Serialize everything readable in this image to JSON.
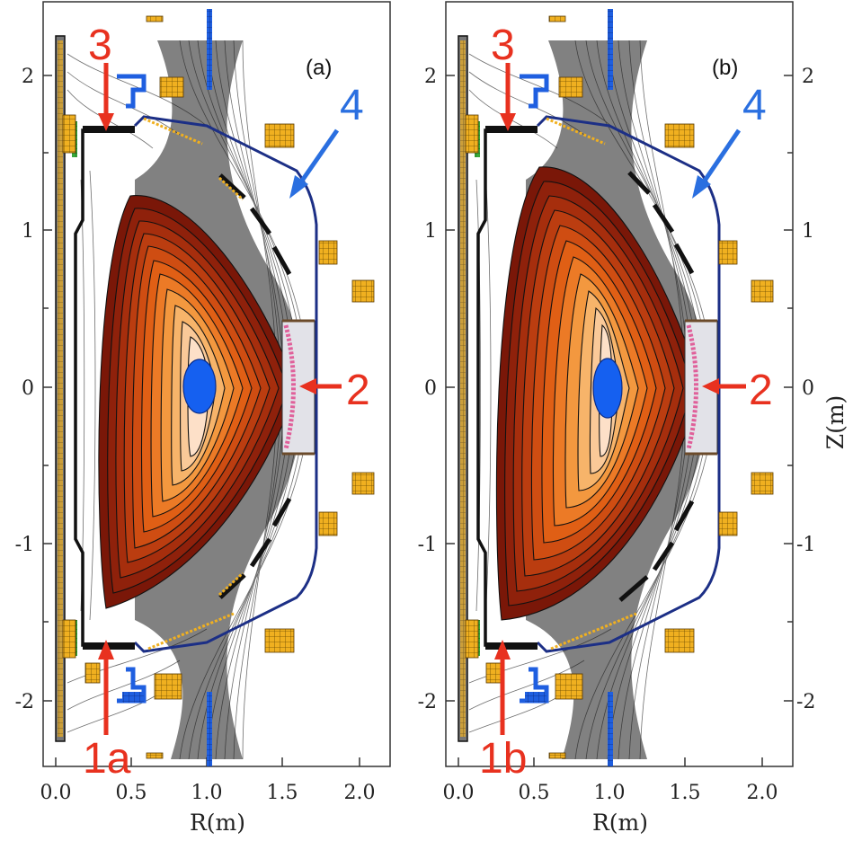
{
  "figure": {
    "panels": [
      {
        "label": "(a)",
        "callouts": [
          {
            "text": "1a",
            "color": "#e8311f"
          },
          {
            "text": "2",
            "color": "#e8311f"
          },
          {
            "text": "3",
            "color": "#e8311f"
          },
          {
            "text": "4",
            "color": "#2a6fe0"
          }
        ]
      },
      {
        "label": "(b)",
        "callouts": [
          {
            "text": "1b",
            "color": "#e8311f"
          },
          {
            "text": "2",
            "color": "#e8311f"
          },
          {
            "text": "3",
            "color": "#e8311f"
          },
          {
            "text": "4",
            "color": "#2a6fe0"
          }
        ]
      }
    ],
    "x_axis": {
      "label": "R(m)",
      "ticks": [
        "0.0",
        "0.5",
        "1.0",
        "1.5",
        "2.0"
      ]
    },
    "y_axis_left": {
      "ticks": [
        "2",
        "1",
        "0",
        "-1",
        "-2"
      ]
    },
    "y_axis_right": {
      "label": "Z(m)",
      "ticks": [
        "2",
        "1",
        "0",
        "-1",
        "-2"
      ]
    },
    "colors": {
      "plasma_outer": "#7a1708",
      "plasma_mid": "#e86a16",
      "plasma_inner": "#fbe3cf",
      "core": "#1560f0",
      "vessel": "#1c2f86",
      "coil": "#f0b020",
      "divertor_blue": "#1f5fe0",
      "antenna_pink": "#e0609a",
      "antenna_box": "#e2e2e8"
    }
  }
}
